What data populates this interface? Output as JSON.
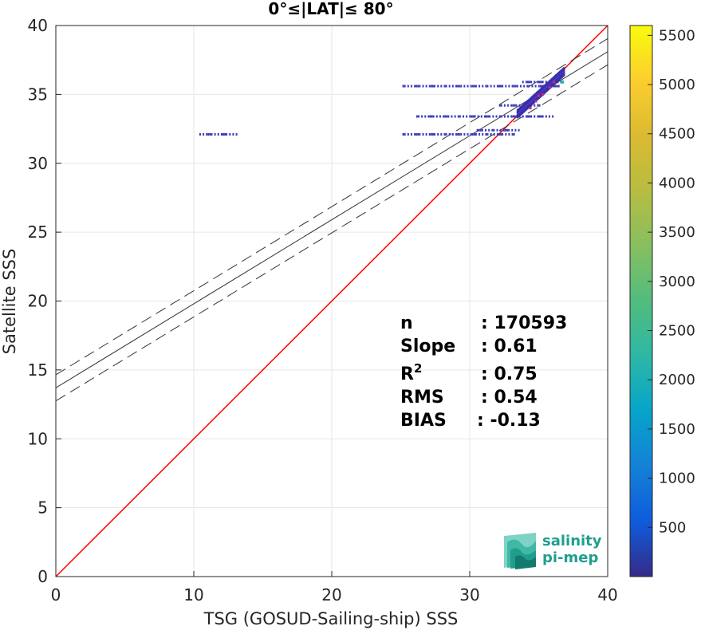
{
  "chart_data": {
    "type": "scatter",
    "title": "0°≤|LAT|≤ 80°",
    "xlabel": "TSG (GOSUD-Sailing-ship) SSS",
    "ylabel": "Satellite SSS",
    "xlim": [
      0,
      40
    ],
    "ylim": [
      0,
      40
    ],
    "xticks": [
      0,
      10,
      20,
      30,
      40
    ],
    "yticks": [
      0,
      5,
      10,
      15,
      20,
      25,
      30,
      35,
      40
    ],
    "grid": true,
    "identity_line": {
      "color": "#ff0000",
      "from": [
        0,
        0
      ],
      "to": [
        40,
        40
      ]
    },
    "fit_line": {
      "slope": 0.61,
      "intercept": 13.7,
      "color": "#333333"
    },
    "fit_bounds": {
      "offset": 0.95,
      "style": "dashed",
      "color": "#333333"
    },
    "density_clusters": [
      {
        "x_start": 10.4,
        "x_end": 13.1,
        "y": 32.1
      },
      {
        "x_start": 25.0,
        "x_end": 36.4,
        "y": 35.6
      },
      {
        "x_start": 26.0,
        "x_end": 36.0,
        "y": 33.4
      },
      {
        "x_start": 25.0,
        "x_end": 33.2,
        "y": 32.1
      },
      {
        "x_start": 30.5,
        "x_end": 33.5,
        "y": 32.4
      },
      {
        "x_start": 33.8,
        "x_end": 36.6,
        "y": 35.9
      },
      {
        "x_start": 32.0,
        "x_end": 35.0,
        "y": 34.2
      }
    ],
    "hot_points": [
      {
        "x": 34.8,
        "y": 34.5
      },
      {
        "x": 35.3,
        "y": 35.0
      },
      {
        "x": 35.8,
        "y": 35.5
      },
      {
        "x": 36.1,
        "y": 35.9
      },
      {
        "x": 34.4,
        "y": 34.0
      },
      {
        "x": 35.0,
        "y": 34.9
      }
    ],
    "colorbar": {
      "min": 0,
      "max": 5600,
      "ticks": [
        500,
        1000,
        1500,
        2000,
        2500,
        3000,
        3500,
        4000,
        4500,
        5000,
        5500
      ],
      "colormap": "parula"
    },
    "stats": [
      {
        "label": "n",
        "value": ": 170593"
      },
      {
        "label": "Slope",
        "value": ": 0.61"
      },
      {
        "label": "R",
        "sup": "2",
        "value": ": 0.75"
      },
      {
        "label": "RMS",
        "value": ": 0.54"
      },
      {
        "label": "BIAS",
        "value": ": -0.13"
      }
    ]
  },
  "logo": {
    "line1": "salinity",
    "line2": "pi-mep"
  }
}
